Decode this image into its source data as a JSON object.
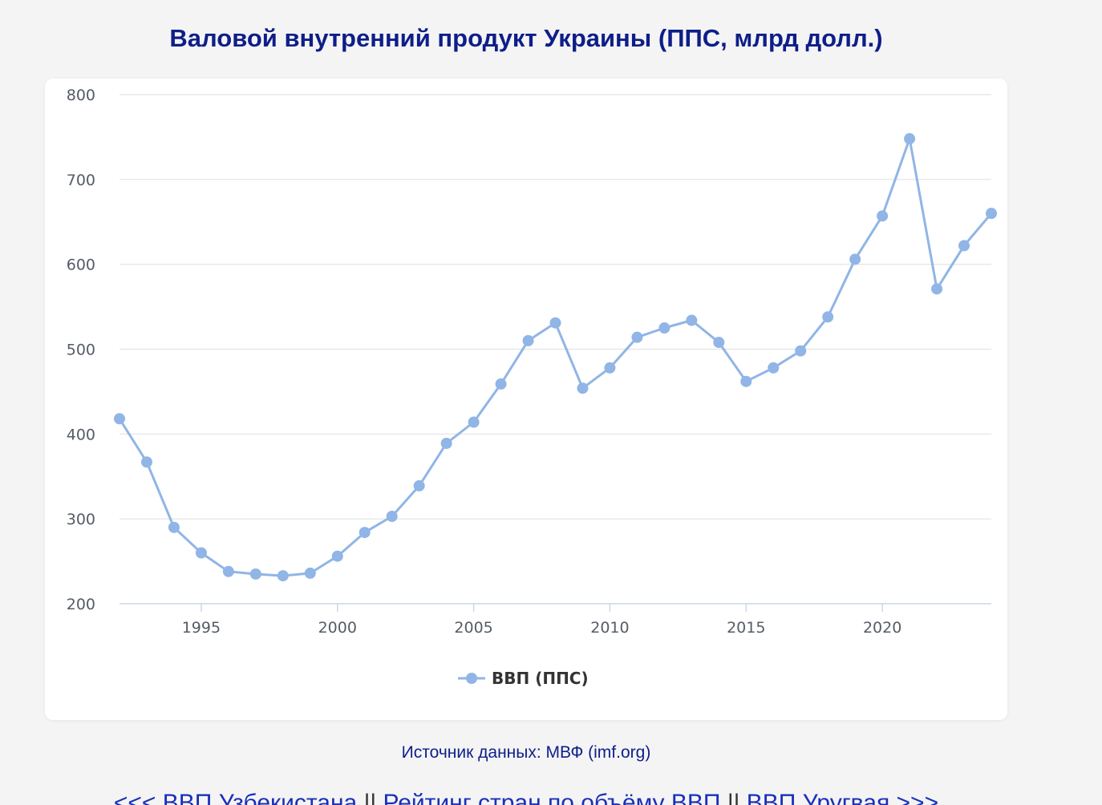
{
  "page": {
    "title": "Валовой внутренний продукт Украины (ППС, млрд долл.)",
    "source": "Источник данных: МВФ (imf.org)",
    "nav": {
      "prev": "<<< ВВП Узбекистана",
      "separator": "||",
      "ranking": "Рейтинг стран по объёму ВВП",
      "next": "ВВП Уругвая >>>"
    }
  },
  "chart_data": {
    "type": "line",
    "title": "Валовой внутренний продукт Украины (ППС, млрд долл.)",
    "xlabel": "",
    "ylabel": "",
    "x": [
      1992,
      1993,
      1994,
      1995,
      1996,
      1997,
      1998,
      1999,
      2000,
      2001,
      2002,
      2003,
      2004,
      2005,
      2006,
      2007,
      2008,
      2009,
      2010,
      2011,
      2012,
      2013,
      2014,
      2015,
      2016,
      2017,
      2018,
      2019,
      2020,
      2021,
      2022,
      2023,
      2024
    ],
    "series": [
      {
        "name": "ВВП (ППС)",
        "color": "#90b5e6",
        "values": [
          418,
          367,
          290,
          260,
          238,
          235,
          233,
          236,
          256,
          284,
          303,
          339,
          389,
          414,
          459,
          510,
          531,
          454,
          478,
          514,
          525,
          534,
          508,
          462,
          478,
          498,
          538,
          606,
          657,
          748,
          571,
          622,
          660
        ]
      }
    ],
    "ylim": [
      200,
      800
    ],
    "xlim": [
      1992,
      1994.5
    ],
    "yticks": [
      200,
      300,
      400,
      500,
      600,
      700,
      800
    ],
    "xticks": [
      1995,
      2000,
      2005,
      2010,
      2015,
      2020
    ],
    "grid": true,
    "legend_position": "bottom-center"
  }
}
